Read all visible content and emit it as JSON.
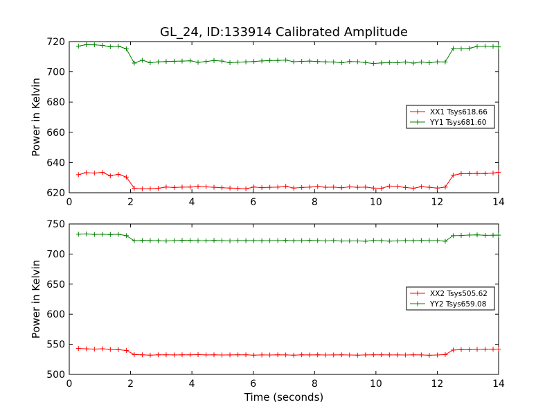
{
  "figure": {
    "title": "GL_24, ID:133914 Calibrated Amplitude",
    "xlabel": "Time (seconds)"
  },
  "chart_data": [
    {
      "type": "line",
      "title": "GL_24, ID:133914 Calibrated Amplitude",
      "xlabel": "",
      "ylabel": "Power in Kelvin",
      "xlim": [
        0,
        14
      ],
      "ylim": [
        620,
        720
      ],
      "x_ticks": [
        "0",
        "2",
        "4",
        "6",
        "8",
        "10",
        "12",
        "14"
      ],
      "y_ticks": [
        "620",
        "640",
        "660",
        "680",
        "700",
        "720"
      ],
      "legend_position": "right",
      "grid": false,
      "x": [
        0.3,
        0.56,
        0.82,
        1.08,
        1.34,
        1.6,
        1.86,
        2.12,
        2.38,
        2.64,
        2.9,
        3.16,
        3.42,
        3.68,
        3.94,
        4.2,
        4.46,
        4.72,
        4.98,
        5.24,
        5.5,
        5.76,
        6.02,
        6.28,
        6.54,
        6.8,
        7.06,
        7.32,
        7.58,
        7.84,
        8.1,
        8.36,
        8.62,
        8.88,
        9.14,
        9.4,
        9.66,
        9.92,
        10.18,
        10.44,
        10.7,
        10.96,
        11.22,
        11.48,
        11.74,
        12.0,
        12.26,
        12.52,
        12.78,
        13.04,
        13.3,
        13.56,
        13.82,
        14.0
      ],
      "series": [
        {
          "name": "XX1 Tsys618.66",
          "color": "#ff0000",
          "values": [
            632.0,
            633.3,
            633.0,
            633.5,
            631.2,
            632.2,
            630.4,
            623.0,
            622.6,
            622.7,
            623.0,
            623.8,
            623.5,
            623.7,
            623.8,
            624.0,
            623.9,
            623.6,
            623.3,
            623.1,
            622.9,
            622.6,
            623.8,
            623.4,
            623.6,
            623.7,
            624.3,
            623.1,
            623.5,
            623.7,
            624.2,
            623.6,
            623.7,
            623.3,
            623.9,
            623.6,
            623.7,
            623.1,
            623.0,
            624.4,
            624.1,
            623.5,
            623.0,
            624.0,
            623.6,
            623.1,
            623.7,
            631.6,
            632.6,
            632.7,
            632.8,
            632.7,
            633.0,
            633.6
          ]
        },
        {
          "name": "YY1 Tsys681.60",
          "color": "#008000",
          "values": [
            717.0,
            718.0,
            717.9,
            717.5,
            716.6,
            717.0,
            715.2,
            705.8,
            707.7,
            706.0,
            706.6,
            706.8,
            707.0,
            707.1,
            707.3,
            706.3,
            706.8,
            707.5,
            707.1,
            706.0,
            706.4,
            706.6,
            706.8,
            707.2,
            707.5,
            707.5,
            707.8,
            706.7,
            706.9,
            707.1,
            706.8,
            706.6,
            706.5,
            706.0,
            706.8,
            706.7,
            706.1,
            705.5,
            705.9,
            706.2,
            706.0,
            706.5,
            705.8,
            706.5,
            706.0,
            706.6,
            706.5,
            715.4,
            715.2,
            715.6,
            716.8,
            717.0,
            716.8,
            716.5
          ]
        }
      ]
    },
    {
      "type": "line",
      "title": "",
      "xlabel": "Time (seconds)",
      "ylabel": "Power in Kelvin",
      "xlim": [
        0,
        14
      ],
      "ylim": [
        500,
        750
      ],
      "x_ticks": [
        "0",
        "2",
        "4",
        "6",
        "8",
        "10",
        "12",
        "14"
      ],
      "y_ticks": [
        "500",
        "550",
        "600",
        "650",
        "700",
        "750"
      ],
      "legend_position": "right",
      "grid": false,
      "x": [
        0.3,
        0.56,
        0.82,
        1.08,
        1.34,
        1.6,
        1.86,
        2.12,
        2.38,
        2.64,
        2.9,
        3.16,
        3.42,
        3.68,
        3.94,
        4.2,
        4.46,
        4.72,
        4.98,
        5.24,
        5.5,
        5.76,
        6.02,
        6.28,
        6.54,
        6.8,
        7.06,
        7.32,
        7.58,
        7.84,
        8.1,
        8.36,
        8.62,
        8.88,
        9.14,
        9.4,
        9.66,
        9.92,
        10.18,
        10.44,
        10.7,
        10.96,
        11.22,
        11.48,
        11.74,
        12.0,
        12.26,
        12.52,
        12.78,
        13.04,
        13.3,
        13.56,
        13.82,
        14.0
      ],
      "series": [
        {
          "name": "XX2 Tsys505.62",
          "color": "#ff0000",
          "values": [
            543.0,
            542.5,
            542.0,
            542.6,
            541.5,
            541.2,
            539.8,
            533.0,
            532.6,
            532.0,
            532.5,
            532.6,
            532.4,
            532.5,
            532.6,
            532.8,
            532.4,
            532.5,
            532.3,
            532.4,
            532.5,
            532.6,
            532.0,
            532.4,
            532.3,
            532.5,
            532.4,
            532.0,
            532.6,
            532.4,
            532.5,
            532.3,
            532.4,
            532.5,
            532.3,
            532.0,
            532.4,
            532.6,
            532.5,
            532.4,
            532.4,
            532.3,
            532.5,
            532.4,
            531.8,
            532.3,
            533.0,
            540.5,
            541.2,
            541.0,
            541.5,
            541.8,
            541.9,
            542.0
          ]
        },
        {
          "name": "YY2 Tsys659.08",
          "color": "#008000",
          "values": [
            733.0,
            733.4,
            732.6,
            732.9,
            732.5,
            732.8,
            730.6,
            722.0,
            722.6,
            722.5,
            722.0,
            721.7,
            722.3,
            722.8,
            722.7,
            722.2,
            722.0,
            722.6,
            722.3,
            721.8,
            722.3,
            722.2,
            722.4,
            722.0,
            722.3,
            722.3,
            722.6,
            722.1,
            722.4,
            722.6,
            722.3,
            721.8,
            722.3,
            721.6,
            721.7,
            721.8,
            721.4,
            722.5,
            722.0,
            721.5,
            721.8,
            722.4,
            722.0,
            722.5,
            722.3,
            722.3,
            721.3,
            730.6,
            730.8,
            731.5,
            731.8,
            731.2,
            731.3,
            731.4
          ]
        }
      ]
    }
  ]
}
